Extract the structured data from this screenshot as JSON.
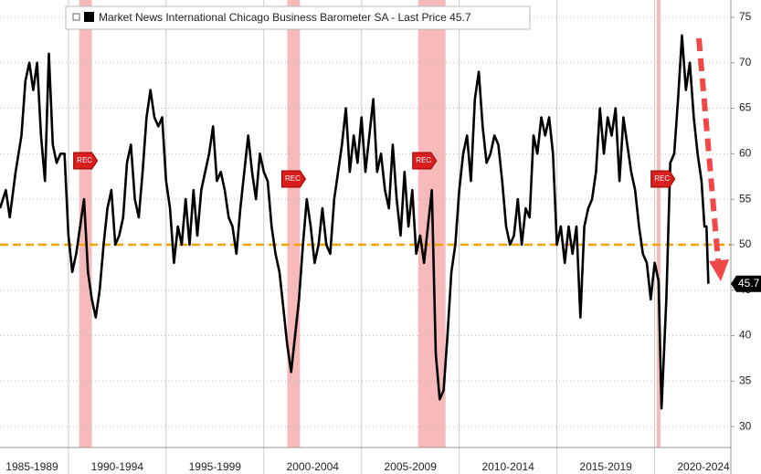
{
  "chart_data": {
    "type": "line",
    "series": [
      {
        "name": "Market News International Chicago Business Barometer SA - Last Price 45.7",
        "color": "#000000",
        "x": [
          1986.5,
          1986.8,
          1987.0,
          1987.3,
          1987.6,
          1987.8,
          1988.0,
          1988.2,
          1988.4,
          1988.6,
          1988.8,
          1989.0,
          1989.2,
          1989.4,
          1989.6,
          1989.8,
          1990.0,
          1990.2,
          1990.4,
          1990.6,
          1990.8,
          1991.0,
          1991.2,
          1991.4,
          1991.6,
          1991.8,
          1992.0,
          1992.2,
          1992.4,
          1992.6,
          1992.8,
          1993.0,
          1993.2,
          1993.4,
          1993.6,
          1993.8,
          1994.0,
          1994.2,
          1994.4,
          1994.6,
          1994.8,
          1995.0,
          1995.2,
          1995.4,
          1995.6,
          1995.8,
          1996.0,
          1996.2,
          1996.4,
          1996.6,
          1996.8,
          1997.0,
          1997.2,
          1997.4,
          1997.6,
          1997.8,
          1998.0,
          1998.2,
          1998.4,
          1998.6,
          1998.8,
          1999.0,
          1999.2,
          1999.4,
          1999.6,
          1999.8,
          2000.0,
          2000.2,
          2000.4,
          2000.6,
          2000.8,
          2001.0,
          2001.2,
          2001.4,
          2001.6,
          2001.8,
          2002.0,
          2002.2,
          2002.4,
          2002.6,
          2002.8,
          2003.0,
          2003.2,
          2003.4,
          2003.6,
          2003.8,
          2004.0,
          2004.2,
          2004.4,
          2004.6,
          2004.8,
          2005.0,
          2005.2,
          2005.4,
          2005.6,
          2005.8,
          2006.0,
          2006.2,
          2006.4,
          2006.6,
          2006.8,
          2007.0,
          2007.2,
          2007.4,
          2007.6,
          2007.8,
          2008.0,
          2008.2,
          2008.4,
          2008.6,
          2008.8,
          2009.0,
          2009.2,
          2009.4,
          2009.6,
          2009.8,
          2010.0,
          2010.2,
          2010.4,
          2010.6,
          2010.8,
          2011.0,
          2011.2,
          2011.4,
          2011.6,
          2011.8,
          2012.0,
          2012.2,
          2012.4,
          2012.6,
          2012.8,
          2013.0,
          2013.2,
          2013.4,
          2013.6,
          2013.8,
          2014.0,
          2014.2,
          2014.4,
          2014.6,
          2014.8,
          2015.0,
          2015.2,
          2015.4,
          2015.6,
          2015.8,
          2016.0,
          2016.2,
          2016.4,
          2016.6,
          2016.8,
          2017.0,
          2017.2,
          2017.4,
          2017.6,
          2017.8,
          2018.0,
          2018.2,
          2018.4,
          2018.6,
          2018.8,
          2019.0,
          2019.2,
          2019.4,
          2019.6,
          2019.8,
          2020.0,
          2020.2,
          2020.35,
          2020.6,
          2020.8,
          2021.0,
          2021.2,
          2021.4,
          2021.6,
          2021.8,
          2022.0,
          2022.2,
          2022.4,
          2022.55,
          2022.65,
          2022.75
        ],
        "values": [
          54,
          56,
          53,
          58,
          62,
          68,
          70,
          67,
          70,
          62,
          57,
          71,
          61,
          59,
          60,
          60,
          51,
          47,
          49,
          52,
          55,
          47,
          44,
          42,
          45,
          50,
          54,
          56,
          50,
          51,
          53,
          59,
          61,
          55,
          53,
          58,
          64,
          67,
          64,
          63,
          64,
          57,
          54,
          48,
          52,
          50,
          55,
          50,
          56,
          51,
          56,
          58,
          60,
          63,
          57,
          58,
          56,
          53,
          52,
          49,
          54,
          58,
          62,
          58,
          55,
          60,
          58,
          57,
          52,
          49,
          47,
          43,
          39,
          36,
          40,
          44,
          50,
          55,
          52,
          48,
          50,
          54,
          50,
          49,
          55,
          58,
          61,
          65,
          58,
          62,
          59,
          64,
          58,
          62,
          66,
          58,
          60,
          56,
          54,
          61,
          55,
          51,
          58,
          52,
          56,
          49,
          51,
          48,
          52,
          56,
          38,
          33,
          34,
          40,
          47,
          50,
          56,
          60,
          62,
          57,
          66,
          69,
          63,
          59,
          60,
          62,
          61,
          57,
          52,
          50,
          51,
          55,
          50,
          54,
          53,
          62,
          60,
          64,
          62,
          64,
          60,
          50,
          52,
          48,
          52,
          49,
          52,
          42,
          52,
          54,
          55,
          58,
          65,
          60,
          64,
          62,
          65,
          57,
          64,
          61,
          58,
          56,
          52,
          49,
          48,
          44,
          48,
          46,
          32,
          44,
          59,
          60,
          66,
          73,
          67,
          70,
          64,
          60,
          57,
          52,
          52,
          45.7
        ]
      }
    ],
    "last_value_label": 45.7,
    "xlim": [
      1986.5,
      2023.9
    ],
    "xticks": [
      {
        "value": 1987.5,
        "label": "1985-1989"
      },
      {
        "value": 1992.5,
        "label": "1990-1994"
      },
      {
        "value": 1997.5,
        "label": "1995-1999"
      },
      {
        "value": 2002.5,
        "label": "2000-2004"
      },
      {
        "value": 2007.5,
        "label": "2005-2009"
      },
      {
        "value": 2012.5,
        "label": "2010-2014"
      },
      {
        "value": 2017.5,
        "label": "2015-2019"
      },
      {
        "value": 2022.5,
        "label": "2020-2024"
      }
    ],
    "ylim": [
      27.7,
      76.9
    ],
    "yticks": [
      30,
      35,
      40,
      45,
      50,
      55,
      60,
      65,
      70,
      75
    ],
    "grid": true,
    "reference_line": {
      "value": 50,
      "color": "#f0a30a"
    },
    "recessions": [
      [
        1990.55,
        1991.2
      ],
      [
        2001.2,
        2001.85
      ],
      [
        2007.9,
        2009.3
      ],
      [
        2020.1,
        2020.3
      ]
    ],
    "recession_label": "REC",
    "recession_color": "#f4a3a3"
  }
}
